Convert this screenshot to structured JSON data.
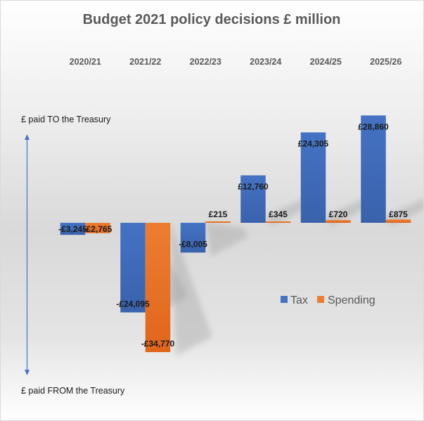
{
  "chart_data": {
    "type": "bar",
    "title": "Budget 2021 policy decisions £ million",
    "categories": [
      "2020/21",
      "2021/22",
      "2022/23",
      "2023/24",
      "2024/25",
      "2025/26"
    ],
    "series": [
      {
        "name": "Tax",
        "color": "#4472c4",
        "values": [
          -3245,
          -24095,
          -8005,
          12760,
          24305,
          28860
        ],
        "labels": [
          "-£3,245",
          "-£24,095",
          "-£8,005",
          "£12,760",
          "£24,305",
          "£28,860"
        ]
      },
      {
        "name": "Spending",
        "color": "#ed7d31",
        "values": [
          -2765,
          -34770,
          215,
          345,
          720,
          875
        ],
        "labels": [
          "-£2,765",
          "-£34,770",
          "£215",
          "£345",
          "£720",
          "£875"
        ]
      }
    ],
    "xlabel": "",
    "ylabel": "",
    "ylim": [
      -34770,
      28860
    ],
    "x_axis_position": "top",
    "grid": false,
    "legend": {
      "position": "right-middle",
      "entries": [
        "Tax",
        "Spending"
      ]
    },
    "annotations": {
      "top": "£ paid TO the Treasury",
      "bottom": "£ paid FROM the Treasury",
      "arrow": "double-headed vertical"
    }
  }
}
